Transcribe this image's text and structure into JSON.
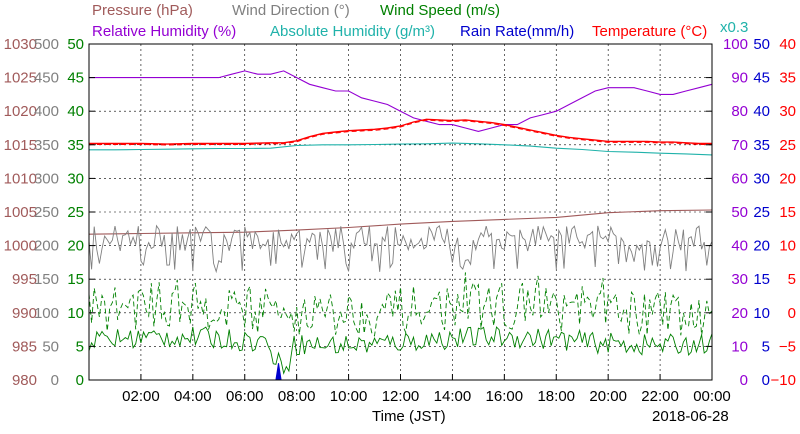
{
  "chart_data": {
    "type": "line",
    "date": "2018-06-28",
    "xlabel": "Time (JST)",
    "x_ticks": [
      "02:00",
      "04:00",
      "06:00",
      "08:00",
      "10:00",
      "12:00",
      "14:00",
      "16:00",
      "18:00",
      "20:00",
      "22:00",
      "00:00"
    ],
    "x_range_hours": [
      0,
      24
    ],
    "grid": true,
    "legend": {
      "row1": [
        {
          "text": "Pressure (hPa)",
          "color": "#a05a5a"
        },
        {
          "text": "Wind Direction (°)",
          "color": "#808080"
        },
        {
          "text": "Wind Speed (m/s)",
          "color": "#008000"
        }
      ],
      "row2": [
        {
          "text": "Relative Humidity (%)",
          "color": "#9400d3"
        },
        {
          "text": "Absolute Humidity (g/m³)",
          "color": "#20b2aa"
        },
        {
          "text": "Rain Rate(mm/h)",
          "color": "#0000cd"
        },
        {
          "text": "Temperature (°C)",
          "color": "#ff0000"
        }
      ],
      "abs_humidity_note": "x0.3"
    },
    "axes": {
      "pressure": {
        "color": "#a05a5a",
        "ticks": [
          "980",
          "985",
          "990",
          "995",
          "1000",
          "1005",
          "1010",
          "1015",
          "1020",
          "1025",
          "1030"
        ]
      },
      "wind_direction": {
        "color": "#808080",
        "ticks": [
          "0",
          "50",
          "100",
          "150",
          "200",
          "250",
          "300",
          "350",
          "400",
          "450",
          "500"
        ]
      },
      "wind_speed": {
        "color": "#008000",
        "ticks": [
          "0",
          "5",
          "10",
          "15",
          "20",
          "25",
          "30",
          "35",
          "40",
          "45",
          "50"
        ]
      },
      "humidity": {
        "color": "#9400d3",
        "ticks": [
          "0",
          "10",
          "20",
          "30",
          "40",
          "50",
          "60",
          "70",
          "80",
          "90",
          "100"
        ]
      },
      "rain_rate": {
        "color": "#0000cd",
        "ticks": [
          "0",
          "5",
          "10",
          "15",
          "20",
          "25",
          "30",
          "35",
          "40",
          "45",
          "50"
        ]
      },
      "temperature": {
        "color": "#ff0000",
        "ticks": [
          "−10",
          "−5",
          "0",
          "5",
          "10",
          "15",
          "20",
          "25",
          "30",
          "35",
          "40"
        ]
      }
    },
    "series": [
      {
        "name": "Relative Humidity",
        "axis": "humidity",
        "x": [
          0,
          1,
          2,
          3,
          4,
          5,
          5.5,
          6,
          6.5,
          7,
          7.5,
          8,
          8.5,
          9,
          9.5,
          10,
          10.5,
          11,
          11.5,
          12,
          12.5,
          13,
          13.5,
          14,
          14.5,
          15,
          15.5,
          16,
          16.5,
          17,
          17.5,
          18,
          18.5,
          19,
          19.5,
          20,
          20.5,
          21,
          21.5,
          22,
          22.5,
          23,
          23.5,
          24
        ],
        "y": [
          90,
          90,
          90,
          90,
          90,
          90,
          91,
          92,
          91,
          91,
          92,
          90,
          88,
          87,
          86,
          86,
          84,
          83,
          82,
          80,
          78,
          77,
          76,
          76,
          75,
          74,
          75,
          76,
          76,
          78,
          79,
          80,
          82,
          84,
          86,
          87,
          87,
          87,
          86,
          85,
          85,
          86,
          87,
          88
        ]
      },
      {
        "name": "Temperature",
        "axis": "temperature",
        "x": [
          0,
          1,
          2,
          3,
          4,
          5,
          6,
          7,
          7.5,
          8,
          8.5,
          9,
          9.5,
          10,
          10.5,
          11,
          11.5,
          12,
          12.5,
          13,
          13.5,
          14,
          14.5,
          15,
          15.5,
          16,
          16.5,
          17,
          17.5,
          18,
          18.5,
          19,
          19.5,
          20,
          20.5,
          21,
          21.5,
          22,
          22.5,
          23,
          23.5,
          24
        ],
        "y": [
          25.2,
          25.2,
          25.2,
          25.1,
          25.2,
          25.2,
          25.2,
          25.3,
          25.3,
          25.6,
          26.2,
          26.7,
          26.9,
          27.1,
          27.2,
          27.3,
          27.5,
          27.8,
          28.4,
          28.8,
          28.7,
          28.6,
          28.7,
          28.5,
          28.3,
          28.0,
          27.6,
          27.2,
          26.8,
          26.4,
          26.1,
          25.9,
          25.7,
          25.5,
          25.5,
          25.5,
          25.5,
          25.4,
          25.4,
          25.3,
          25.2,
          25.2
        ]
      },
      {
        "name": "Absolute Humidity",
        "axis": "humidity",
        "scale": 0.3,
        "x": [
          0,
          1,
          2,
          3,
          4,
          5,
          6,
          7,
          8,
          9,
          10,
          11,
          12,
          13,
          14,
          15,
          16,
          17,
          18,
          19,
          20,
          21,
          22,
          23,
          24
        ],
        "y": [
          68.5,
          68.5,
          68.6,
          68.7,
          68.8,
          68.9,
          68.9,
          69.0,
          69.8,
          70.0,
          70.0,
          70.1,
          70.2,
          70.3,
          70.5,
          70.3,
          70.0,
          69.6,
          69.0,
          68.6,
          68.0,
          67.8,
          67.5,
          67.3,
          67.0
        ]
      },
      {
        "name": "Pressure",
        "axis": "pressure",
        "x": [
          0,
          2,
          4,
          6,
          8,
          10,
          12,
          14,
          16,
          18,
          20,
          22,
          24
        ],
        "y": [
          1001.7,
          1001.8,
          1001.9,
          1002.0,
          1002.3,
          1002.7,
          1003.2,
          1003.6,
          1003.9,
          1004.2,
          1004.9,
          1005.2,
          1005.3
        ]
      },
      {
        "name": "Wind Direction",
        "axis": "wind_direction",
        "avg": 210,
        "spread": 20
      },
      {
        "name": "Wind Speed (gust)",
        "axis": "wind_speed",
        "avg": 10.5,
        "spread": 3.5,
        "dashed": true
      },
      {
        "name": "Wind Speed (mean)",
        "axis": "wind_speed",
        "avg": 5.8,
        "spread": 1.6
      },
      {
        "name": "Rain Rate",
        "axis": "rain_rate",
        "x": [
          7.2,
          7.3,
          7.4
        ],
        "y": [
          0,
          2.5,
          0
        ]
      }
    ]
  }
}
